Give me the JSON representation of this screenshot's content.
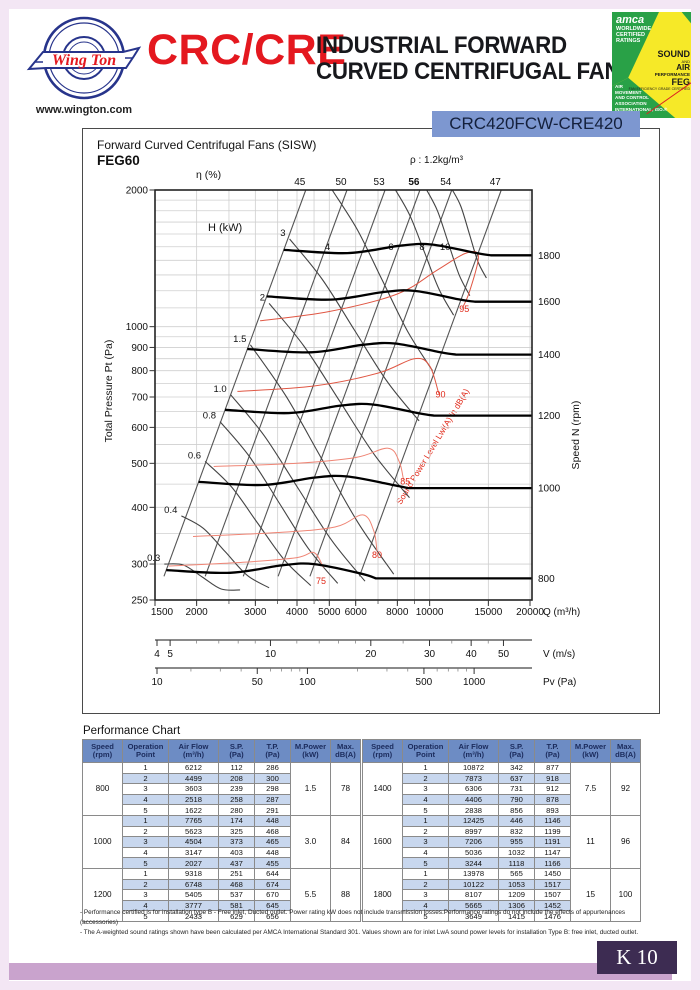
{
  "brand": {
    "logo_text": "Wing Ton",
    "website": "www.wington.com"
  },
  "header": {
    "series": "CRC/CRE",
    "title_line1": "INDUSTRIAL FORWARD",
    "title_line2": "CURVED CENTRIFUGAL FAN"
  },
  "amca": {
    "word": "amca",
    "sub1": "WORLDWIDE",
    "sub2": "CERTIFIED",
    "sub3": "RATINGS",
    "sound": "SOUND",
    "and": "AND",
    "air": "AIR",
    "perf": "PERFORMANCE",
    "feg": "FEG",
    "feg_sub": "FAN EFFICIENCY GRADE CERTIFIED",
    "assoc1": "AIR",
    "assoc2": "MOVEMENT",
    "assoc3": "AND CONTROL",
    "assoc4": "ASSOCIATION",
    "assoc5": "INTERNATIONAL, ISO.®"
  },
  "model_badge": "CRC420FCW-CRE420",
  "page_label": "K 10",
  "chart_data": {
    "type": "line",
    "title": "Forward Curved Centrifugal Fans (SISW)",
    "feg": "FEG60",
    "density": "ρ : 1.2kg/m³",
    "eta_title": "η (%)",
    "power_title": "H (kW)",
    "sound_title": "Sound Power Level Lwi(A) in dB(A)",
    "x_axis": {
      "label": "Q (m³/h)",
      "min": 1500,
      "max": 20000,
      "ticks": [
        1500,
        2000,
        3000,
        4000,
        5000,
        6000,
        8000,
        10000,
        15000,
        20000
      ],
      "grid": [
        2000,
        2500,
        3000,
        3500,
        4000,
        4500,
        5000,
        6000,
        7000,
        8000,
        9000,
        10000,
        15000,
        20000
      ]
    },
    "y_axis": {
      "label": "Total Pressure Pt (Pa)",
      "min": 250,
      "max": 2000,
      "ticks": [
        2000,
        1000,
        900,
        800,
        700,
        600,
        500,
        400,
        300,
        250
      ],
      "grid": [
        300,
        350,
        400,
        450,
        500,
        550,
        600,
        650,
        700,
        750,
        800,
        850,
        900,
        950,
        1000,
        1100,
        1200,
        1300,
        1400,
        1500,
        1600,
        1700,
        1800,
        1900
      ]
    },
    "right_axis": {
      "label": "Speed N (rpm)"
    },
    "speed_curves": [
      {
        "rpm": "800",
        "points": [
          [
            1622,
            291
          ],
          [
            2518,
            287
          ],
          [
            3603,
            298
          ],
          [
            4499,
            300
          ],
          [
            6212,
            286
          ]
        ],
        "ext": [
          6900,
          279
        ]
      },
      {
        "rpm": "1000",
        "points": [
          [
            2027,
            455
          ],
          [
            3147,
            448
          ],
          [
            4504,
            465
          ],
          [
            5623,
            468
          ],
          [
            7765,
            448
          ]
        ],
        "ext": [
          8600,
          441
        ]
      },
      {
        "rpm": "1200",
        "points": [
          [
            2433,
            656
          ],
          [
            3777,
            645
          ],
          [
            5405,
            670
          ],
          [
            6748,
            674
          ],
          [
            9318,
            644
          ]
        ],
        "ext": [
          10300,
          637
        ]
      },
      {
        "rpm": "1400",
        "points": [
          [
            2838,
            893
          ],
          [
            4406,
            878
          ],
          [
            6306,
            912
          ],
          [
            7873,
            918
          ],
          [
            10872,
            877
          ]
        ],
        "ext": [
          12000,
          868
        ]
      },
      {
        "rpm": "1600",
        "points": [
          [
            3244,
            1166
          ],
          [
            5036,
            1147
          ],
          [
            7206,
            1191
          ],
          [
            8997,
            1199
          ],
          [
            12425,
            1146
          ]
        ],
        "ext": [
          13700,
          1135
        ]
      },
      {
        "rpm": "1800",
        "points": [
          [
            3649,
            1476
          ],
          [
            5665,
            1452
          ],
          [
            8107,
            1507
          ],
          [
            10122,
            1517
          ],
          [
            13978,
            1450
          ]
        ],
        "ext": [
          15300,
          1436
        ]
      }
    ],
    "efficiency_lines": [
      {
        "label": "45",
        "q_top": 4250
      },
      {
        "label": "50",
        "q_top": 5650
      },
      {
        "label": "53",
        "q_top": 7350
      },
      {
        "label": "56",
        "q_top": 9350,
        "bold": true
      },
      {
        "label": "54",
        "q_top": 11650
      },
      {
        "label": "47",
        "q_top": 16400
      }
    ],
    "power_curves": [
      {
        "label": "0.3",
        "from": [
          1600,
          300
        ],
        "to": [
          2700,
          263
        ]
      },
      {
        "label": "0.4",
        "from": [
          1800,
          383
        ],
        "to": [
          3300,
          266
        ]
      },
      {
        "label": "0.6",
        "from": [
          2120,
          505
        ],
        "to": [
          4400,
          269
        ]
      },
      {
        "label": "0.8",
        "from": [
          2350,
          618
        ],
        "to": [
          5300,
          272
        ]
      },
      {
        "label": "1.0",
        "from": [
          2530,
          708
        ],
        "to": [
          6400,
          275
        ]
      },
      {
        "label": "1.5",
        "from": [
          2900,
          912
        ],
        "to": [
          7800,
          285
        ]
      },
      {
        "label": "2",
        "from": [
          3300,
          1125
        ],
        "to": [
          8700,
          420
        ]
      },
      {
        "label": "3",
        "from": [
          3800,
          1560
        ],
        "to": [
          9300,
          620
        ]
      },
      {
        "label": "4",
        "from": [
          5100,
          2000
        ],
        "to": [
          10200,
          800
        ]
      },
      {
        "label": "6",
        "from": [
          7900,
          2000
        ],
        "to": [
          11800,
          1060
        ]
      },
      {
        "label": "8",
        "from": [
          9800,
          2000
        ],
        "to": [
          13200,
          1170
        ]
      },
      {
        "label": "10",
        "from": [
          11700,
          2000
        ],
        "to": [
          14800,
          1280
        ]
      }
    ],
    "sound_curves": [
      {
        "label": "75",
        "points": [
          [
            1650,
            297
          ],
          [
            2800,
            303
          ],
          [
            4000,
            310
          ],
          [
            4500,
            318
          ],
          [
            4800,
            295
          ]
        ],
        "label_at": [
          4720,
          271
        ],
        "light": true
      },
      {
        "label": "80",
        "points": [
          [
            1950,
            345
          ],
          [
            3500,
            352
          ],
          [
            5200,
            362
          ],
          [
            6300,
            385
          ],
          [
            6800,
            355
          ],
          [
            6950,
            320
          ]
        ],
        "label_at": [
          6950,
          309
        ],
        "light": true
      },
      {
        "label": "85",
        "points": [
          [
            2250,
            492
          ],
          [
            4000,
            500
          ],
          [
            6000,
            515
          ],
          [
            7500,
            540
          ],
          [
            8100,
            505
          ],
          [
            8350,
            460
          ]
        ],
        "label_at": [
          8450,
          449
        ],
        "light": true
      },
      {
        "label": "90",
        "points": [
          [
            2650,
            720
          ],
          [
            4500,
            740
          ],
          [
            7000,
            790
          ],
          [
            9000,
            850
          ],
          [
            10000,
            820
          ],
          [
            10650,
            712
          ]
        ],
        "label_at": [
          10780,
          699
        ]
      },
      {
        "label": "95",
        "points": [
          [
            3100,
            1030
          ],
          [
            5000,
            1080
          ],
          [
            8000,
            1180
          ],
          [
            10500,
            1330
          ],
          [
            12800,
            1450
          ],
          [
            14000,
            1430
          ],
          [
            13200,
            1200
          ],
          [
            12550,
            1100
          ]
        ],
        "label_at": [
          12700,
          1078
        ]
      }
    ],
    "v_axis": {
      "label": "V (m/s)",
      "major": [
        4,
        5,
        10,
        20,
        30,
        40,
        50
      ],
      "minor": [
        6,
        7,
        8,
        9,
        12,
        14,
        16,
        18,
        25,
        35,
        45
      ]
    },
    "pv_axis": {
      "label": "Pv (Pa)",
      "major": [
        10,
        50,
        100,
        500,
        1000
      ],
      "minor": [
        20,
        30,
        40,
        60,
        70,
        80,
        90,
        200,
        300,
        400,
        600,
        700,
        800,
        900
      ]
    }
  },
  "tables": {
    "title": "Performance Chart",
    "headers": [
      [
        "Speed",
        "(rpm)"
      ],
      [
        "Operation",
        "Point"
      ],
      [
        "Air Flow",
        "(m³/h)"
      ],
      [
        "S.P.",
        "(Pa)"
      ],
      [
        "T.P.",
        "(Pa)"
      ],
      [
        "M.Power",
        "(kW)"
      ],
      [
        "Max.",
        "dB(A)"
      ]
    ],
    "left": [
      {
        "speed": "800",
        "power": "1.5",
        "max_db": "78",
        "rows": [
          [
            "1",
            "6212",
            "112",
            "286"
          ],
          [
            "2",
            "4499",
            "208",
            "300"
          ],
          [
            "3",
            "3603",
            "239",
            "298"
          ],
          [
            "4",
            "2518",
            "258",
            "287"
          ],
          [
            "5",
            "1622",
            "280",
            "291"
          ]
        ]
      },
      {
        "speed": "1000",
        "power": "3.0",
        "max_db": "84",
        "rows": [
          [
            "1",
            "7765",
            "174",
            "448"
          ],
          [
            "2",
            "5623",
            "325",
            "468"
          ],
          [
            "3",
            "4504",
            "373",
            "465"
          ],
          [
            "4",
            "3147",
            "403",
            "448"
          ],
          [
            "5",
            "2027",
            "437",
            "455"
          ]
        ]
      },
      {
        "speed": "1200",
        "power": "5.5",
        "max_db": "88",
        "rows": [
          [
            "1",
            "9318",
            "251",
            "644"
          ],
          [
            "2",
            "6748",
            "468",
            "674"
          ],
          [
            "3",
            "5405",
            "537",
            "670"
          ],
          [
            "4",
            "3777",
            "581",
            "645"
          ],
          [
            "5",
            "2433",
            "629",
            "656"
          ]
        ]
      }
    ],
    "right": [
      {
        "speed": "1400",
        "power": "7.5",
        "max_db": "92",
        "rows": [
          [
            "1",
            "10872",
            "342",
            "877"
          ],
          [
            "2",
            "7873",
            "637",
            "918"
          ],
          [
            "3",
            "6306",
            "731",
            "912"
          ],
          [
            "4",
            "4406",
            "790",
            "878"
          ],
          [
            "5",
            "2838",
            "856",
            "893"
          ]
        ]
      },
      {
        "speed": "1600",
        "power": "11",
        "max_db": "96",
        "rows": [
          [
            "1",
            "12425",
            "446",
            "1146"
          ],
          [
            "2",
            "8997",
            "832",
            "1199"
          ],
          [
            "3",
            "7206",
            "955",
            "1191"
          ],
          [
            "4",
            "5036",
            "1032",
            "1147"
          ],
          [
            "5",
            "3244",
            "1118",
            "1166"
          ]
        ]
      },
      {
        "speed": "1800",
        "power": "15",
        "max_db": "100",
        "rows": [
          [
            "1",
            "13978",
            "565",
            "1450"
          ],
          [
            "2",
            "10122",
            "1053",
            "1517"
          ],
          [
            "3",
            "8107",
            "1209",
            "1507"
          ],
          [
            "4",
            "5665",
            "1306",
            "1452"
          ],
          [
            "5",
            "3649",
            "1415",
            "1476"
          ]
        ]
      }
    ],
    "notes": [
      "- Performance certified is for installation type B - Free inlet, Ducted outlet. Power rating kW does not include transmission losses.Performance ratings do not include the effects of appurtenances (accessories)",
      "- The A-weighted sound ratings shown have been calculated per AMCA International Standard 301. Values shown are for inlet LwA sound power levels for installation Type B: free inlet, ducted outlet."
    ]
  }
}
